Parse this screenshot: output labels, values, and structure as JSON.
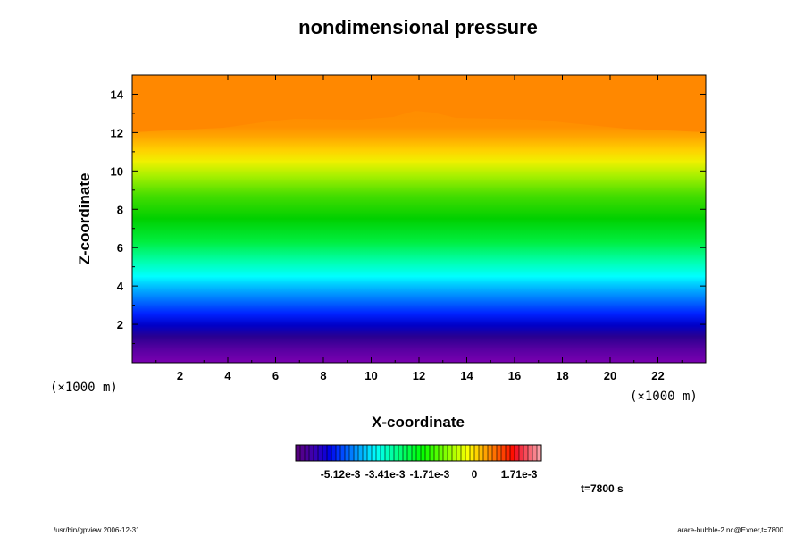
{
  "chart_data": {
    "type": "heatmap",
    "title": "nondimensional pressure",
    "xlabel": "X-coordinate",
    "ylabel": "Z-coordinate",
    "x_unit": "(×1000 m)",
    "y_unit": "(×1000 m)",
    "xlim": [
      0,
      24
    ],
    "ylim": [
      0,
      15
    ],
    "x_ticks": [
      "2",
      "4",
      "6",
      "8",
      "10",
      "12",
      "14",
      "16",
      "18",
      "20",
      "22"
    ],
    "y_ticks": [
      "2",
      "4",
      "6",
      "8",
      "10",
      "12",
      "14"
    ],
    "colorbar": {
      "tick_labels": [
        "-5.12e-3",
        "-3.41e-3",
        "-1.71e-3",
        "0",
        "1.71e-3"
      ],
      "tick_values": [
        -0.00512,
        -0.00341,
        -0.00171,
        0,
        0.00171
      ],
      "range": [
        -0.00683,
        0.00256
      ],
      "n_levels": 55
    },
    "field_description": "values vary mainly with height: low (violet/blue) near the bottom, high (orange) near the top, slight bulge near x=12 at z~13",
    "annotation": "t=7800 s",
    "footer_left": "/usr/bin/gpview 2006-12-31",
    "footer_right": "arare-bubble-2.nc@Exner,t=7800"
  }
}
